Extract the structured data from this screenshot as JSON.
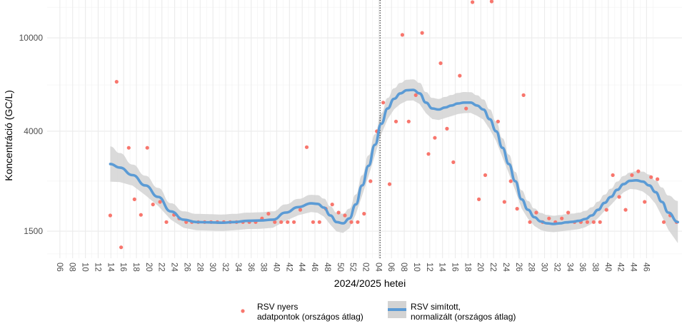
{
  "chart_data": {
    "type": "scatter",
    "title": "",
    "xlabel": "2024/2025 hetei",
    "ylabel": "Koncentráció (GC/L)",
    "y_scale": "log",
    "ylim": [
      1150,
      14500
    ],
    "y_ticks": [
      1500,
      4000,
      10000
    ],
    "y_tick_labels": [
      "1500",
      "4000",
      "10000"
    ],
    "x_ticks": [
      "06",
      "08",
      "10",
      "12",
      "14",
      "16",
      "18",
      "20",
      "22",
      "24",
      "26",
      "28",
      "30",
      "32",
      "34",
      "36",
      "38",
      "40",
      "42",
      "44",
      "46",
      "48",
      "50",
      "52",
      "02",
      "04",
      "06",
      "08",
      "10",
      "12",
      "14",
      "16",
      "18",
      "20",
      "22",
      "24",
      "26",
      "28",
      "30",
      "32",
      "34",
      "36",
      "38",
      "40",
      "42",
      "44",
      "46"
    ],
    "season_break_after": "52",
    "grid": true,
    "legend": {
      "position": "bottom",
      "items": [
        {
          "key": "raw",
          "line1": "RSV nyers",
          "line2": "adatpontok (országos átlag)"
        },
        {
          "key": "smooth",
          "line1": "RSV simított,",
          "line2": "normalizált (országos átlag)"
        }
      ]
    },
    "colors": {
      "points": "#f8766d",
      "smooth_line": "#5b9bd5",
      "ribbon": "#d3d3d3",
      "grid": "#ebebeb"
    },
    "raw_points": [
      [
        10.5,
        1750
      ],
      [
        11.5,
        6500
      ],
      [
        12.2,
        1280
      ],
      [
        13.4,
        3400
      ],
      [
        14.3,
        2050
      ],
      [
        15.3,
        1760
      ],
      [
        16.3,
        3400
      ],
      [
        17.2,
        1950
      ],
      [
        18.3,
        2000
      ],
      [
        19.3,
        1640
      ],
      [
        20.5,
        1760
      ],
      [
        21.3,
        1700
      ],
      [
        22.4,
        1640
      ],
      [
        23.3,
        1640
      ],
      [
        24.3,
        1640
      ],
      [
        25.3,
        1640
      ],
      [
        26.3,
        1640
      ],
      [
        27.3,
        1640
      ],
      [
        28.3,
        1640
      ],
      [
        29.3,
        1640
      ],
      [
        30.3,
        1640
      ],
      [
        31.3,
        1640
      ],
      [
        32.3,
        1640
      ],
      [
        33.3,
        1640
      ],
      [
        34.3,
        1700
      ],
      [
        35.3,
        1780
      ],
      [
        36.3,
        1640
      ],
      [
        37.3,
        1640
      ],
      [
        38.3,
        1640
      ],
      [
        39.3,
        1640
      ],
      [
        40.3,
        1850
      ],
      [
        41.3,
        3420
      ],
      [
        42.3,
        1640
      ],
      [
        43.3,
        1640
      ],
      [
        44.3,
        1870
      ],
      [
        45.3,
        1950
      ],
      [
        46.3,
        1800
      ],
      [
        47.3,
        1750
      ],
      [
        48.3,
        1640
      ],
      [
        49.3,
        1640
      ],
      [
        50.3,
        1780
      ],
      [
        51.3,
        2450
      ],
      [
        52.3,
        4000
      ],
      [
        53.3,
        5300
      ],
      [
        54.3,
        2380
      ],
      [
        55.3,
        4400
      ],
      [
        56.3,
        10300
      ],
      [
        57.3,
        4400
      ],
      [
        58.4,
        5700
      ],
      [
        59.4,
        10500
      ],
      [
        60.4,
        3200
      ],
      [
        61.4,
        3750
      ],
      [
        62.3,
        7800
      ],
      [
        63.3,
        4100
      ],
      [
        64.3,
        2950
      ],
      [
        65.3,
        6900
      ],
      [
        66.3,
        5000
      ],
      [
        67.3,
        14200
      ],
      [
        68.3,
        2050
      ],
      [
        69.3,
        2600
      ],
      [
        70.3,
        14300
      ],
      [
        71.3,
        4400
      ],
      [
        72.3,
        2000
      ],
      [
        73.3,
        2450
      ],
      [
        74.3,
        1870
      ],
      [
        75.3,
        5700
      ],
      [
        76.3,
        1640
      ],
      [
        77.3,
        1800
      ],
      [
        78.3,
        1640
      ],
      [
        79.3,
        1700
      ],
      [
        80.3,
        1640
      ],
      [
        81.3,
        1700
      ],
      [
        82.3,
        1800
      ],
      [
        83.3,
        1640
      ],
      [
        84.3,
        1640
      ],
      [
        85.3,
        1640
      ],
      [
        86.3,
        1640
      ],
      [
        87.3,
        1640
      ],
      [
        88.3,
        1850
      ],
      [
        89.3,
        2600
      ],
      [
        90.3,
        2100
      ],
      [
        91.3,
        1850
      ],
      [
        92.3,
        2600
      ],
      [
        93.3,
        2700
      ],
      [
        94.3,
        2000
      ],
      [
        95.3,
        2550
      ],
      [
        96.3,
        2500
      ],
      [
        97.3,
        1640
      ],
      [
        98.3,
        1750
      ],
      [
        99.3,
        1640
      ]
    ],
    "smooth_curve": [
      [
        10.5,
        2900
      ],
      [
        12,
        2800
      ],
      [
        14,
        2600
      ],
      [
        16,
        2350
      ],
      [
        18,
        2100
      ],
      [
        20,
        1820
      ],
      [
        22,
        1680
      ],
      [
        24,
        1640
      ],
      [
        26,
        1635
      ],
      [
        28,
        1630
      ],
      [
        30,
        1640
      ],
      [
        32,
        1660
      ],
      [
        34,
        1665
      ],
      [
        36,
        1680
      ],
      [
        38,
        1800
      ],
      [
        40,
        1900
      ],
      [
        42,
        1970
      ],
      [
        43,
        1960
      ],
      [
        44,
        1890
      ],
      [
        45,
        1750
      ],
      [
        46,
        1640
      ],
      [
        47,
        1620
      ],
      [
        48,
        1700
      ],
      [
        49,
        1950
      ],
      [
        50,
        2350
      ],
      [
        51,
        2850
      ],
      [
        52,
        3500
      ],
      [
        53,
        4300
      ],
      [
        54,
        5000
      ],
      [
        55,
        5500
      ],
      [
        56,
        5800
      ],
      [
        57,
        5980
      ],
      [
        58,
        6000
      ],
      [
        59,
        5800
      ],
      [
        60,
        5300
      ],
      [
        61,
        5000
      ],
      [
        62,
        4950
      ],
      [
        63,
        5050
      ],
      [
        64,
        5150
      ],
      [
        65,
        5250
      ],
      [
        66,
        5300
      ],
      [
        67,
        5300
      ],
      [
        68,
        5150
      ],
      [
        69,
        4950
      ],
      [
        70,
        4500
      ],
      [
        71,
        4000
      ],
      [
        72,
        3400
      ],
      [
        73,
        2900
      ],
      [
        74,
        2450
      ],
      [
        75,
        2050
      ],
      [
        76,
        1850
      ],
      [
        77,
        1720
      ],
      [
        78,
        1650
      ],
      [
        79,
        1620
      ],
      [
        80,
        1610
      ],
      [
        81,
        1620
      ],
      [
        82,
        1635
      ],
      [
        83,
        1645
      ],
      [
        84,
        1660
      ],
      [
        85,
        1690
      ],
      [
        86,
        1750
      ],
      [
        87,
        1850
      ],
      [
        88,
        1980
      ],
      [
        89,
        2100
      ],
      [
        90,
        2250
      ],
      [
        91,
        2380
      ],
      [
        92,
        2460
      ],
      [
        93,
        2470
      ],
      [
        94,
        2440
      ],
      [
        95,
        2350
      ],
      [
        96,
        2200
      ],
      [
        97,
        2000
      ],
      [
        98,
        1800
      ],
      [
        99.5,
        1640
      ]
    ],
    "ribbon_width_log": [
      [
        10.5,
        0.075
      ],
      [
        14,
        0.045
      ],
      [
        20,
        0.035
      ],
      [
        40,
        0.035
      ],
      [
        52,
        0.045
      ],
      [
        58,
        0.045
      ],
      [
        66,
        0.045
      ],
      [
        80,
        0.035
      ],
      [
        92,
        0.035
      ],
      [
        96,
        0.05
      ],
      [
        99.5,
        0.09
      ]
    ]
  }
}
